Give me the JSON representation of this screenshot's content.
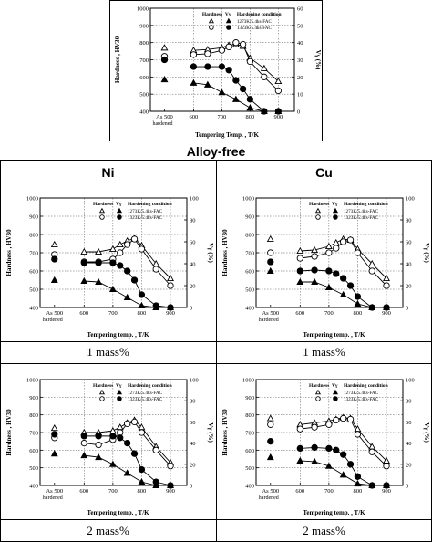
{
  "labels": {
    "top_caption": "Alloy-free",
    "col_ni": "Ni",
    "col_cu": "Cu",
    "row1_ni": "1 mass%",
    "row1_cu": "1 mass%",
    "row2_ni": "2 mass%",
    "row2_cu": "2 mass%"
  },
  "chart_data": [
    {
      "type": "scatter",
      "panel": "alloy-free",
      "ylabel": "Hardness , HV30",
      "y2label": "Vγ (%)",
      "xlabel": "Tempering Temp. , T/K",
      "as_hardened": "As hardened",
      "ylim": [
        400,
        1000
      ],
      "y2lim": [
        0,
        60
      ],
      "xlim": [
        420,
        930
      ],
      "yticks": [
        400,
        500,
        600,
        700,
        800,
        900,
        1000
      ],
      "y2ticks": [
        0,
        10,
        20,
        30,
        40,
        50,
        60
      ],
      "xticks": [
        "As 500",
        "600",
        "700",
        "800",
        "900"
      ],
      "legend": {
        "hardness": "Hardness",
        "vgamma": "Vγ",
        "condition": "Hardening condition",
        "series": [
          "1273K/5.4ks-FAC",
          "1323K/5.4ks-FAC"
        ]
      },
      "series": [
        {
          "marker": "open-triangle",
          "x": [
            573,
            623,
            673,
            698,
            723,
            748,
            773,
            823,
            873
          ],
          "y": [
            755,
            760,
            770,
            785,
            790,
            780,
            710,
            650,
            575
          ],
          "as_hardened": 770
        },
        {
          "marker": "open-circle",
          "x": [
            573,
            623,
            673,
            698,
            723,
            748,
            773,
            823,
            873
          ],
          "y": [
            730,
            735,
            755,
            775,
            800,
            790,
            690,
            600,
            520
          ],
          "as_hardened": 720
        },
        {
          "marker": "filled-triangle",
          "x": [
            573,
            623,
            673,
            723,
            773,
            823,
            873
          ],
          "y": [
            565,
            555,
            510,
            470,
            420,
            400,
            400
          ],
          "as_hardened": 585
        },
        {
          "marker": "filled-circle",
          "x": [
            573,
            623,
            673,
            698,
            723,
            748,
            773,
            823,
            873
          ],
          "y": [
            660,
            660,
            660,
            640,
            580,
            530,
            470,
            400,
            400
          ],
          "as_hardened": 700
        }
      ]
    },
    {
      "type": "scatter",
      "panel": "ni-1",
      "ylabel": "Hardness , HV30",
      "y2label": "Vγ (%)",
      "xlabel": "Tempering temp. , T/K",
      "as_hardened": "As hardened",
      "ylim": [
        400,
        1000
      ],
      "y2lim": [
        0,
        100
      ],
      "xlim": [
        420,
        930
      ],
      "yticks": [
        400,
        500,
        600,
        700,
        800,
        900,
        1000
      ],
      "y2ticks": [
        0,
        20,
        40,
        60,
        80,
        100
      ],
      "xticks": [
        "As 500",
        "600",
        "700",
        "800",
        "900"
      ],
      "legend": {
        "hardness": "Hardness",
        "vgamma": "Vγ",
        "condition": "Hardening condition",
        "series": [
          "1273K/5.4ks-FAC",
          "1323K/5.4ks-FAC"
        ]
      },
      "series": [
        {
          "marker": "open-triangle",
          "x": [
            573,
            623,
            673,
            698,
            723,
            748,
            773,
            823,
            873
          ],
          "y": [
            705,
            705,
            720,
            745,
            765,
            780,
            740,
            640,
            560
          ],
          "as_hardened": 745
        },
        {
          "marker": "open-circle",
          "x": [
            573,
            623,
            673,
            698,
            723,
            748,
            773,
            823,
            873
          ],
          "y": [
            650,
            650,
            665,
            700,
            745,
            775,
            720,
            610,
            520
          ],
          "as_hardened": 690
        },
        {
          "marker": "filled-triangle",
          "x": [
            573,
            623,
            673,
            723,
            773,
            823,
            873
          ],
          "y": [
            545,
            540,
            500,
            455,
            410,
            400,
            400
          ],
          "as_hardened": 550
        },
        {
          "marker": "filled-circle",
          "x": [
            573,
            623,
            673,
            698,
            723,
            748,
            773,
            823,
            873
          ],
          "y": [
            645,
            645,
            645,
            630,
            600,
            550,
            470,
            410,
            400
          ],
          "as_hardened": 665
        }
      ]
    },
    {
      "type": "scatter",
      "panel": "cu-1",
      "ylabel": "Hardness , HV30",
      "y2label": "Vγ (%)",
      "xlabel": "Tempering temp. , T/K",
      "as_hardened": "As hardened",
      "ylim": [
        400,
        1000
      ],
      "y2lim": [
        0,
        100
      ],
      "xlim": [
        420,
        930
      ],
      "yticks": [
        400,
        500,
        600,
        700,
        800,
        900,
        1000
      ],
      "y2ticks": [
        0,
        20,
        40,
        60,
        80,
        100
      ],
      "xticks": [
        "As 500",
        "600",
        "700",
        "800",
        "900"
      ],
      "legend": {
        "hardness": "Hardness",
        "vgamma": "Vγ",
        "condition": "Hardening condition",
        "series": [
          "1273K/5.4ks-FAC",
          "1323K/5.4ks-FAC"
        ]
      },
      "series": [
        {
          "marker": "open-triangle",
          "x": [
            573,
            623,
            673,
            698,
            723,
            748,
            773,
            823,
            873
          ],
          "y": [
            710,
            715,
            735,
            755,
            775,
            770,
            720,
            640,
            560
          ],
          "as_hardened": 775
        },
        {
          "marker": "open-circle",
          "x": [
            573,
            623,
            673,
            698,
            723,
            748,
            773,
            823,
            873
          ],
          "y": [
            670,
            680,
            700,
            725,
            760,
            770,
            700,
            600,
            520
          ],
          "as_hardened": 700
        },
        {
          "marker": "filled-triangle",
          "x": [
            573,
            623,
            673,
            723,
            773,
            823,
            873
          ],
          "y": [
            540,
            540,
            510,
            470,
            420,
            400,
            400
          ],
          "as_hardened": 600
        },
        {
          "marker": "filled-circle",
          "x": [
            573,
            623,
            673,
            698,
            723,
            748,
            773,
            823,
            873
          ],
          "y": [
            600,
            605,
            600,
            585,
            560,
            520,
            460,
            400,
            400
          ],
          "as_hardened": 650
        }
      ]
    },
    {
      "type": "scatter",
      "panel": "ni-2",
      "ylabel": "Hardness , HV30",
      "y2label": "Vγ (%)",
      "xlabel": "Tempering temp. , T/K",
      "as_hardened": "As hardened",
      "ylim": [
        400,
        1000
      ],
      "y2lim": [
        0,
        100
      ],
      "xlim": [
        420,
        930
      ],
      "yticks": [
        400,
        500,
        600,
        700,
        800,
        900,
        1000
      ],
      "y2ticks": [
        0,
        20,
        40,
        60,
        80,
        100
      ],
      "xticks": [
        "As 500",
        "600",
        "700",
        "800",
        "900"
      ],
      "legend": {
        "hardness": "Hardness",
        "vgamma": "Vγ",
        "condition": "Hardening condition",
        "series": [
          "1273K/5.4ks-FAC",
          "1323K/5.4ks-FAC"
        ]
      },
      "series": [
        {
          "marker": "open-triangle",
          "x": [
            573,
            623,
            673,
            698,
            723,
            748,
            773,
            823,
            873
          ],
          "y": [
            700,
            700,
            710,
            730,
            755,
            770,
            730,
            620,
            530
          ],
          "as_hardened": 725
        },
        {
          "marker": "open-circle",
          "x": [
            573,
            623,
            673,
            698,
            723,
            748,
            773,
            823,
            873
          ],
          "y": [
            640,
            630,
            660,
            700,
            750,
            760,
            700,
            600,
            510
          ],
          "as_hardened": 670
        },
        {
          "marker": "filled-triangle",
          "x": [
            573,
            623,
            673,
            723,
            773,
            823,
            873
          ],
          "y": [
            570,
            560,
            520,
            470,
            420,
            400,
            400
          ],
          "as_hardened": 580
        },
        {
          "marker": "filled-circle",
          "x": [
            573,
            623,
            673,
            698,
            723,
            748,
            773,
            823,
            873
          ],
          "y": [
            680,
            680,
            680,
            670,
            640,
            580,
            490,
            420,
            400
          ],
          "as_hardened": 690
        }
      ]
    },
    {
      "type": "scatter",
      "panel": "cu-2",
      "ylabel": "Hardness , HV30",
      "y2label": "Vγ (%)",
      "xlabel": "Tempering temp. , T/K",
      "as_hardened": "As hardened",
      "ylim": [
        400,
        1000
      ],
      "y2lim": [
        0,
        100
      ],
      "xlim": [
        420,
        930
      ],
      "yticks": [
        400,
        500,
        600,
        700,
        800,
        900,
        1000
      ],
      "y2ticks": [
        0,
        20,
        40,
        60,
        80,
        100
      ],
      "xticks": [
        "As 500",
        "600",
        "700",
        "800",
        "900"
      ],
      "legend": {
        "hardness": "Hardness",
        "vgamma": "Vγ",
        "condition": "Hardening condition",
        "series": [
          "1273K/5.4ks-FAC",
          "1323K/5.4ks-FAC"
        ]
      },
      "series": [
        {
          "marker": "open-triangle",
          "x": [
            573,
            623,
            673,
            698,
            723,
            748,
            773,
            823,
            873
          ],
          "y": [
            745,
            755,
            765,
            775,
            785,
            780,
            720,
            620,
            540
          ],
          "as_hardened": 780
        },
        {
          "marker": "open-circle",
          "x": [
            573,
            623,
            673,
            698,
            723,
            748,
            773,
            823,
            873
          ],
          "y": [
            720,
            730,
            745,
            770,
            780,
            775,
            690,
            590,
            510
          ],
          "as_hardened": 745
        },
        {
          "marker": "filled-triangle",
          "x": [
            573,
            623,
            673,
            723,
            773,
            823,
            873
          ],
          "y": [
            540,
            535,
            510,
            460,
            410,
            400,
            400
          ],
          "as_hardened": 560
        },
        {
          "marker": "filled-circle",
          "x": [
            573,
            623,
            673,
            698,
            723,
            748,
            773,
            823,
            873
          ],
          "y": [
            610,
            615,
            610,
            600,
            575,
            520,
            450,
            400,
            400
          ],
          "as_hardened": 650
        }
      ]
    }
  ]
}
